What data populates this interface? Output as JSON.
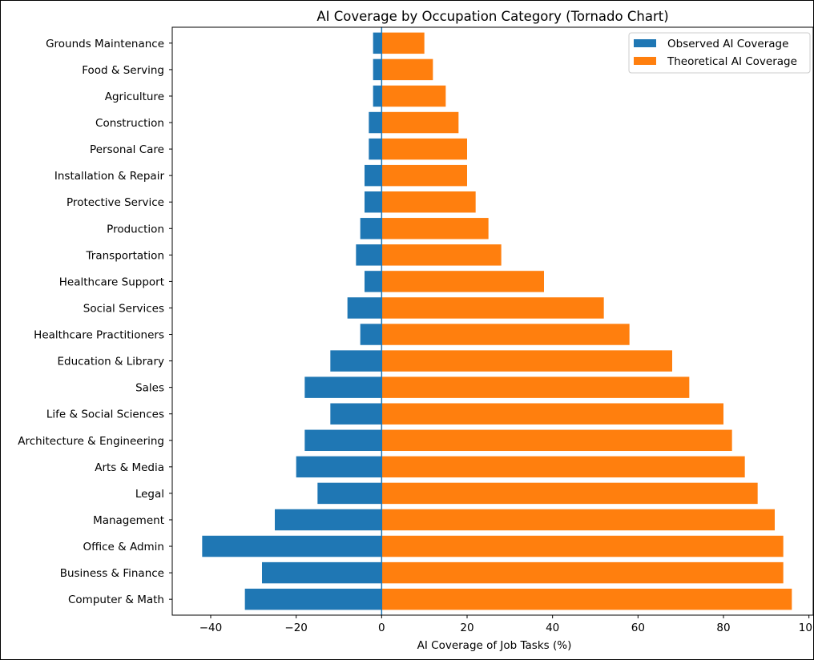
{
  "chart_data": {
    "type": "bar",
    "orientation": "horizontal",
    "title": "AI Coverage by Occupation Category (Tornado Chart)",
    "xlabel": "AI Coverage of Job Tasks (%)",
    "ylabel": "",
    "xlim": [
      -49,
      101
    ],
    "xticks": [
      -40,
      -20,
      0,
      20,
      40,
      60,
      80,
      100
    ],
    "xtick_labels": [
      "−40",
      "−20",
      "0",
      "20",
      "40",
      "60",
      "80",
      "100"
    ],
    "legend_position": "top-right",
    "grid": false,
    "categories": [
      "Computer & Math",
      "Business & Finance",
      "Office & Admin",
      "Management",
      "Legal",
      "Arts & Media",
      "Architecture & Engineering",
      "Life & Social Sciences",
      "Sales",
      "Education & Library",
      "Healthcare Practitioners",
      "Social Services",
      "Healthcare Support",
      "Transportation",
      "Production",
      "Protective Service",
      "Installation & Repair",
      "Personal Care",
      "Construction",
      "Agriculture",
      "Food & Serving",
      "Grounds Maintenance"
    ],
    "series": [
      {
        "name": "Observed AI Coverage",
        "color": "#1f77b4",
        "values": [
          -32,
          -28,
          -42,
          -25,
          -15,
          -20,
          -18,
          -12,
          -18,
          -12,
          -5,
          -8,
          -4,
          -6,
          -5,
          -4,
          -4,
          -3,
          -3,
          -2,
          -2,
          -2
        ]
      },
      {
        "name": "Theoretical AI Coverage",
        "color": "#ff7f0e",
        "values": [
          96,
          94,
          94,
          92,
          88,
          85,
          82,
          80,
          72,
          68,
          58,
          52,
          38,
          28,
          25,
          22,
          20,
          20,
          18,
          15,
          12,
          10
        ]
      }
    ],
    "zero_line_color": "#1f77b4"
  }
}
